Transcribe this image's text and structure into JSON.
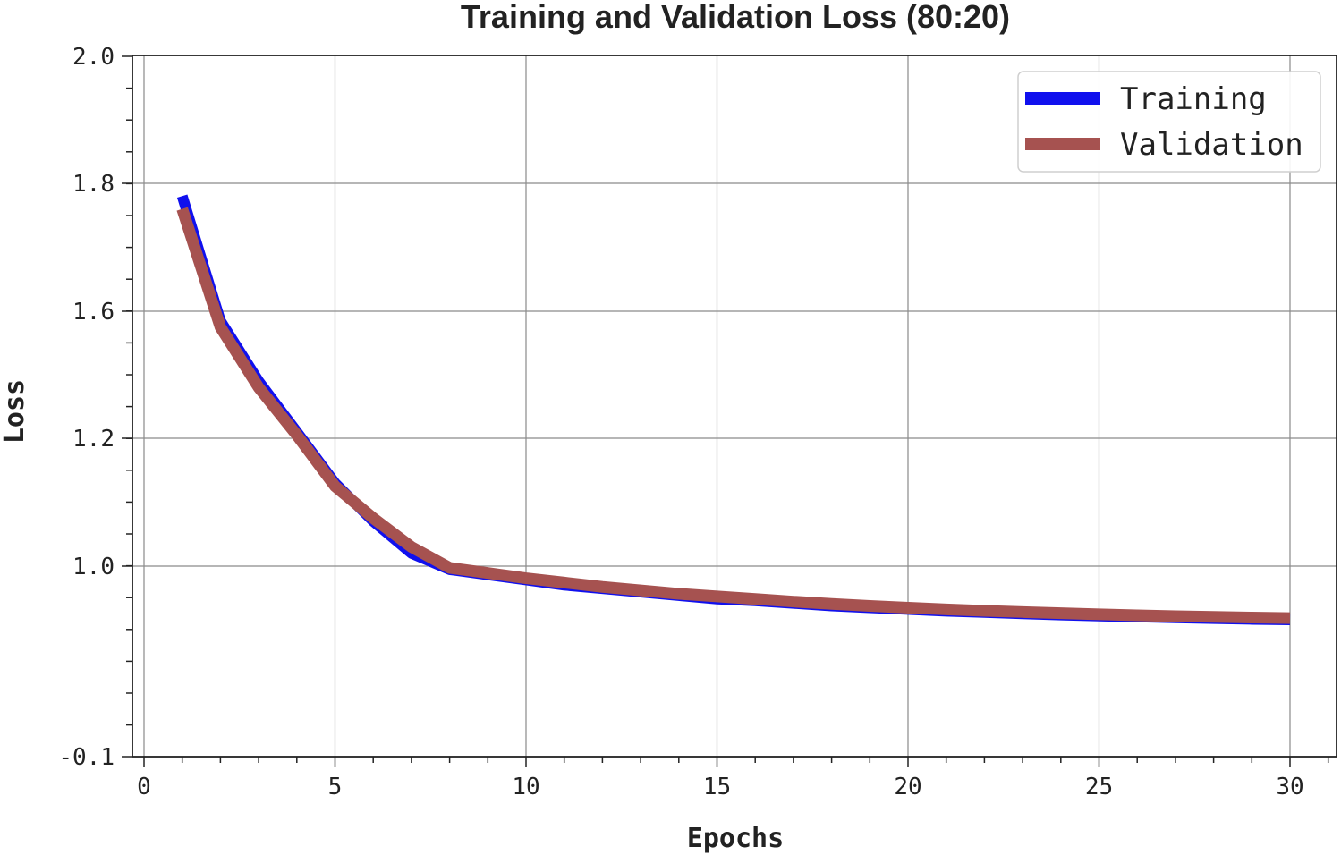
{
  "chart_data": {
    "type": "line",
    "title": "Training and Validation Loss (80:20)",
    "xlabel": "Epochs",
    "ylabel": "Loss",
    "x_ticks": [
      0,
      5,
      10,
      15,
      20,
      25,
      30
    ],
    "y_tick_values": [
      2.0,
      1.8,
      1.6,
      1.2,
      1.0,
      -0.1
    ],
    "y_tick_labels": [
      "2.0",
      "1.8",
      "1.6",
      "1.2",
      "1.0",
      "-0.1"
    ],
    "grid": true,
    "legend_position": "top-right",
    "x": [
      1,
      2,
      3,
      4,
      5,
      6,
      7,
      8,
      9,
      10,
      11,
      12,
      13,
      14,
      15,
      16,
      17,
      18,
      19,
      20,
      21,
      22,
      23,
      24,
      25,
      26,
      27,
      28,
      29,
      30
    ],
    "series": [
      {
        "name": "Training",
        "color": "#1010ee",
        "values": [
          1.78,
          1.57,
          1.38,
          1.22,
          1.13,
          1.07,
          1.02,
          0.98,
          0.95,
          0.92,
          0.89,
          0.87,
          0.85,
          0.83,
          0.81,
          0.8,
          0.785,
          0.77,
          0.76,
          0.75,
          0.74,
          0.733,
          0.725,
          0.718,
          0.712,
          0.707,
          0.702,
          0.697,
          0.693,
          0.69
        ]
      },
      {
        "name": "Validation",
        "color": "#a65250",
        "values": [
          1.76,
          1.55,
          1.36,
          1.21,
          1.125,
          1.075,
          1.03,
          0.99,
          0.96,
          0.93,
          0.905,
          0.88,
          0.86,
          0.84,
          0.825,
          0.81,
          0.795,
          0.782,
          0.77,
          0.76,
          0.75,
          0.742,
          0.735,
          0.728,
          0.722,
          0.716,
          0.711,
          0.707,
          0.703,
          0.7
        ]
      }
    ]
  }
}
